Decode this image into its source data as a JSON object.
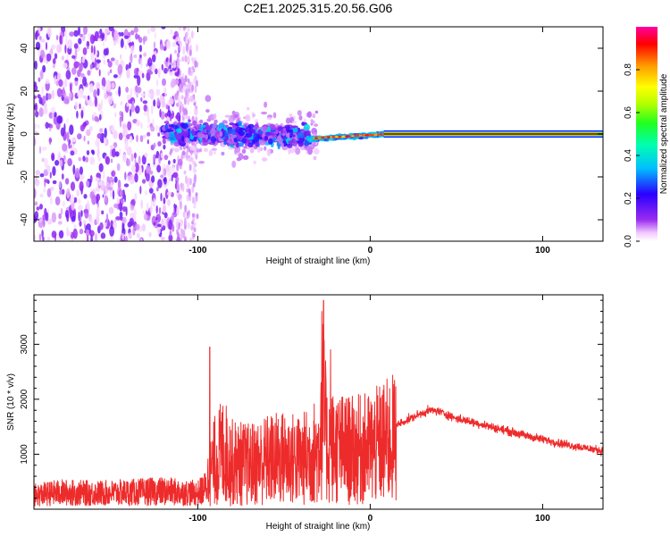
{
  "title": "C2E1.2025.315.20.56.G06",
  "chart_data": [
    {
      "type": "heatmap",
      "xlabel": "Height of straight line (km)",
      "ylabel": "Frequency (Hz)",
      "xlim": [
        -195,
        135
      ],
      "ylim": [
        -50,
        50
      ],
      "xticks": [
        -100,
        0,
        100
      ],
      "xtick_labels": [
        "-100",
        "0",
        "100"
      ],
      "yticks": [
        -40,
        -20,
        0,
        20,
        40
      ],
      "ytick_labels": [
        "-40",
        "-20",
        "0",
        "20",
        "40"
      ],
      "colorbar": {
        "label": "Normalized spectral amplitude",
        "range": [
          0.0,
          1.0
        ],
        "ticks": [
          0.0,
          0.2,
          0.4,
          0.6,
          0.8
        ],
        "tick_labels": [
          "0.0",
          "0.2",
          "0.4",
          "0.6",
          "0.8"
        ],
        "colormap": "rainbow (white-violet-blue-cyan-green-yellow-orange-red-magenta)"
      },
      "regions": [
        {
          "x": [
            -195,
            -105
          ],
          "freq_band": [
            -50,
            50
          ],
          "amplitude": [
            0.0,
            0.1
          ],
          "pattern": "noise"
        },
        {
          "x": [
            -120,
            -35
          ],
          "freq_band": [
            -10,
            10
          ],
          "amplitude": [
            0.05,
            0.3
          ],
          "pattern": "scattered"
        },
        {
          "x": [
            -35,
            10
          ],
          "freq_band": [
            -4,
            3
          ],
          "amplitude": [
            0.3,
            0.9
          ],
          "pattern": "converging line"
        },
        {
          "x": [
            10,
            135
          ],
          "freq_band": [
            -1,
            1
          ],
          "amplitude": [
            0.9,
            1.0
          ],
          "pattern": "steady line"
        }
      ],
      "grid": false,
      "legend": "colorbar right"
    },
    {
      "type": "line",
      "xlabel": "Height of straight line (km)",
      "ylabel": "SNR (10 * v/v)",
      "xlim": [
        -195,
        135
      ],
      "ylim": [
        0,
        3900
      ],
      "xticks": [
        -100,
        0,
        100
      ],
      "xtick_labels": [
        "-100",
        "0",
        "100"
      ],
      "yticks": [
        1000,
        2000,
        3000
      ],
      "ytick_labels": [
        "1000",
        "2000",
        "3000"
      ],
      "color": "#ee2b2b",
      "series": [
        {
          "x": [
            -195,
            -180,
            -160,
            -140,
            -120,
            -100,
            -95,
            -90,
            -85,
            -80,
            -70,
            -60,
            -50,
            -40,
            -30,
            -28,
            -25,
            -20,
            -10,
            0,
            10,
            20,
            30,
            35,
            40,
            50,
            60,
            70,
            80,
            90,
            100,
            110,
            120,
            135
          ],
          "y": [
            350,
            420,
            400,
            420,
            450,
            400,
            550,
            1050,
            1250,
            1000,
            950,
            1050,
            1100,
            1050,
            1250,
            2350,
            1350,
            1300,
            1250,
            1300,
            1450,
            1600,
            1750,
            1800,
            1780,
            1650,
            1580,
            1500,
            1420,
            1340,
            1270,
            1200,
            1140,
            1060
          ]
        }
      ],
      "peaks": [
        {
          "x": -93,
          "y": 2950
        },
        {
          "x": -27,
          "y": 3800
        },
        {
          "x": -23,
          "y": 2900
        }
      ],
      "grid": false
    }
  ]
}
